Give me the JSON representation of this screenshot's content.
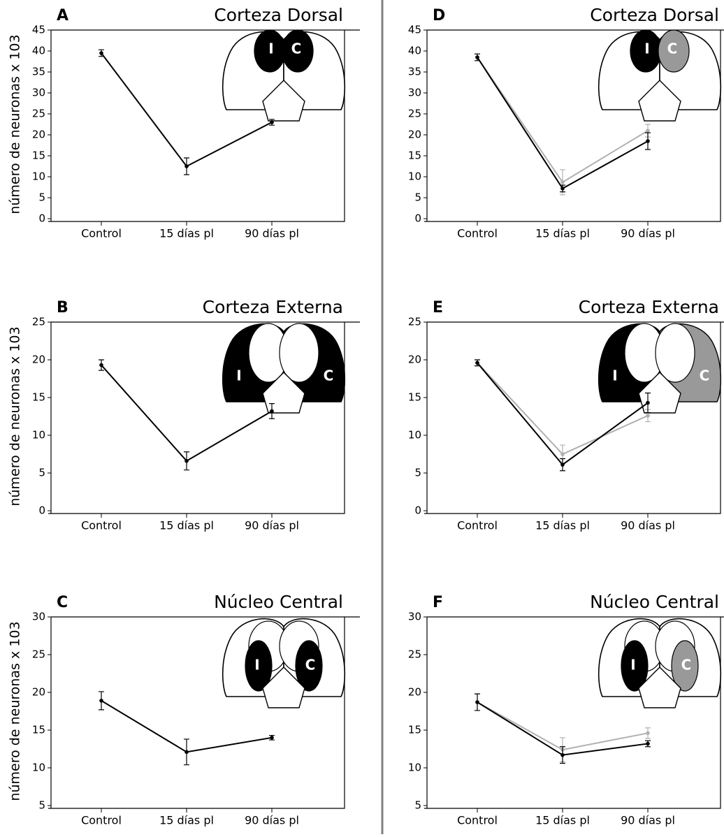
{
  "chart_data": [
    {
      "type": "line",
      "panel_label": "A",
      "title": "Corteza Dorsal",
      "y_label": "número de neuronas x 103",
      "categories": [
        "Control",
        "15 días pl",
        "90 días pl"
      ],
      "series": [
        {
          "color": "#000000",
          "values": [
            39.5,
            12.5,
            23
          ],
          "errors": [
            0.8,
            2,
            0.7
          ]
        }
      ],
      "ylim": [
        0,
        45
      ],
      "yticks": [
        0,
        5,
        10,
        15,
        20,
        25,
        30,
        35,
        40,
        45
      ],
      "diagram": {
        "left_label": "I",
        "right_label": "C",
        "left_color": "#000000",
        "right_color": "#000000"
      }
    },
    {
      "type": "line",
      "panel_label": "B",
      "title": "Corteza Externa",
      "y_label": "número de neuronas x 103",
      "categories": [
        "Control",
        "15 días pl",
        "90 días pl"
      ],
      "series": [
        {
          "color": "#000000",
          "values": [
            19.3,
            6.6,
            13.2
          ],
          "errors": [
            0.7,
            1.2,
            1
          ]
        }
      ],
      "ylim": [
        0,
        25
      ],
      "yticks": [
        0,
        5,
        10,
        15,
        20,
        25
      ],
      "diagram": {
        "left_label": "I",
        "right_label": "C",
        "left_color": "#000000",
        "right_color": "#000000"
      }
    },
    {
      "type": "line",
      "panel_label": "C",
      "title": "Núcleo Central",
      "y_label": "número de neuronas x 103",
      "categories": [
        "Control",
        "15 días pl",
        "90 días pl"
      ],
      "series": [
        {
          "color": "#000000",
          "values": [
            18.9,
            12.1,
            14
          ],
          "errors": [
            1.2,
            1.7,
            0.3
          ]
        }
      ],
      "ylim": [
        5,
        30
      ],
      "yticks": [
        5,
        10,
        15,
        20,
        25,
        30
      ],
      "diagram": {
        "left_label": "I",
        "right_label": "C",
        "left_color": "#000000",
        "right_color": "#000000"
      }
    },
    {
      "type": "line",
      "panel_label": "D",
      "title": "Corteza Dorsal",
      "categories": [
        "Control",
        "15 días pl",
        "90 días pl"
      ],
      "series": [
        {
          "color": "#b0b0b0",
          "values": [
            38.5,
            8.7,
            21
          ],
          "errors": [
            0.8,
            3,
            1.5
          ]
        },
        {
          "color": "#000000",
          "values": [
            38.5,
            7.2,
            18.5
          ],
          "errors": [
            0.8,
            0.8,
            2
          ]
        }
      ],
      "ylim": [
        0,
        45
      ],
      "yticks": [
        0,
        5,
        10,
        15,
        20,
        25,
        30,
        35,
        40,
        45
      ],
      "diagram": {
        "left_label": "I",
        "right_label": "C",
        "left_color": "#000000",
        "right_color": "#999999"
      }
    },
    {
      "type": "line",
      "panel_label": "E",
      "title": "Corteza Externa",
      "categories": [
        "Control",
        "15 días pl",
        "90 días pl"
      ],
      "series": [
        {
          "color": "#b0b0b0",
          "values": [
            19.6,
            7.5,
            12.6
          ],
          "errors": [
            0.4,
            1.2,
            0.8
          ]
        },
        {
          "color": "#000000",
          "values": [
            19.6,
            6.1,
            14.3
          ],
          "errors": [
            0.4,
            0.8,
            1.3
          ]
        }
      ],
      "ylim": [
        0,
        25
      ],
      "yticks": [
        0,
        5,
        10,
        15,
        20,
        25
      ],
      "diagram": {
        "left_label": "I",
        "right_label": "C",
        "left_color": "#000000",
        "right_color": "#999999"
      }
    },
    {
      "type": "line",
      "panel_label": "F",
      "title": "Núcleo Central",
      "categories": [
        "Control",
        "15 días pl",
        "90 días pl"
      ],
      "series": [
        {
          "color": "#b0b0b0",
          "values": [
            18.7,
            12.4,
            14.6
          ],
          "errors": [
            1.1,
            1.6,
            0.7
          ]
        },
        {
          "color": "#000000",
          "values": [
            18.7,
            11.7,
            13.2
          ],
          "errors": [
            1.1,
            1.1,
            0.4
          ]
        }
      ],
      "ylim": [
        5,
        30
      ],
      "yticks": [
        5,
        10,
        15,
        20,
        25,
        30
      ],
      "diagram": {
        "left_label": "I",
        "right_label": "C",
        "left_color": "#000000",
        "right_color": "#999999"
      }
    }
  ]
}
